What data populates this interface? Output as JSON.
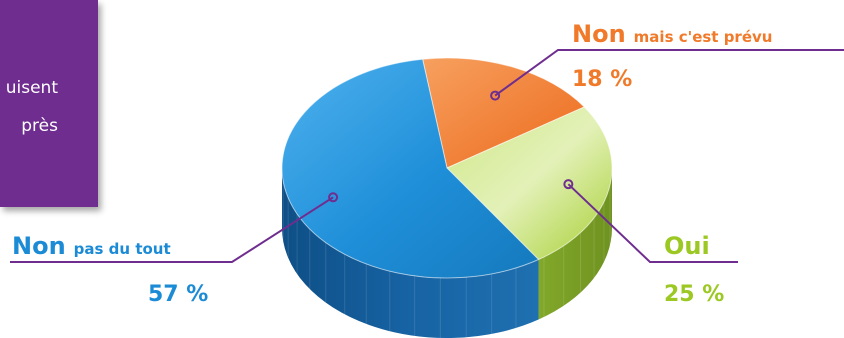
{
  "info_box": {
    "lines": [
      "uisent",
      "près"
    ]
  },
  "chart_data": {
    "type": "pie",
    "title": "",
    "slices": [
      {
        "label": "Non",
        "sublabel": "mais c'est prévu",
        "value": 18,
        "display": "18 %",
        "color": "#f07a2a"
      },
      {
        "label": "Oui",
        "sublabel": "",
        "value": 25,
        "display": "25 %",
        "color": "#9cc823"
      },
      {
        "label": "Non",
        "sublabel": "pas du tout",
        "value": 57,
        "display": "57 %",
        "color": "#1b8bd6"
      }
    ],
    "accent_line_color": "#6f2e8f"
  }
}
